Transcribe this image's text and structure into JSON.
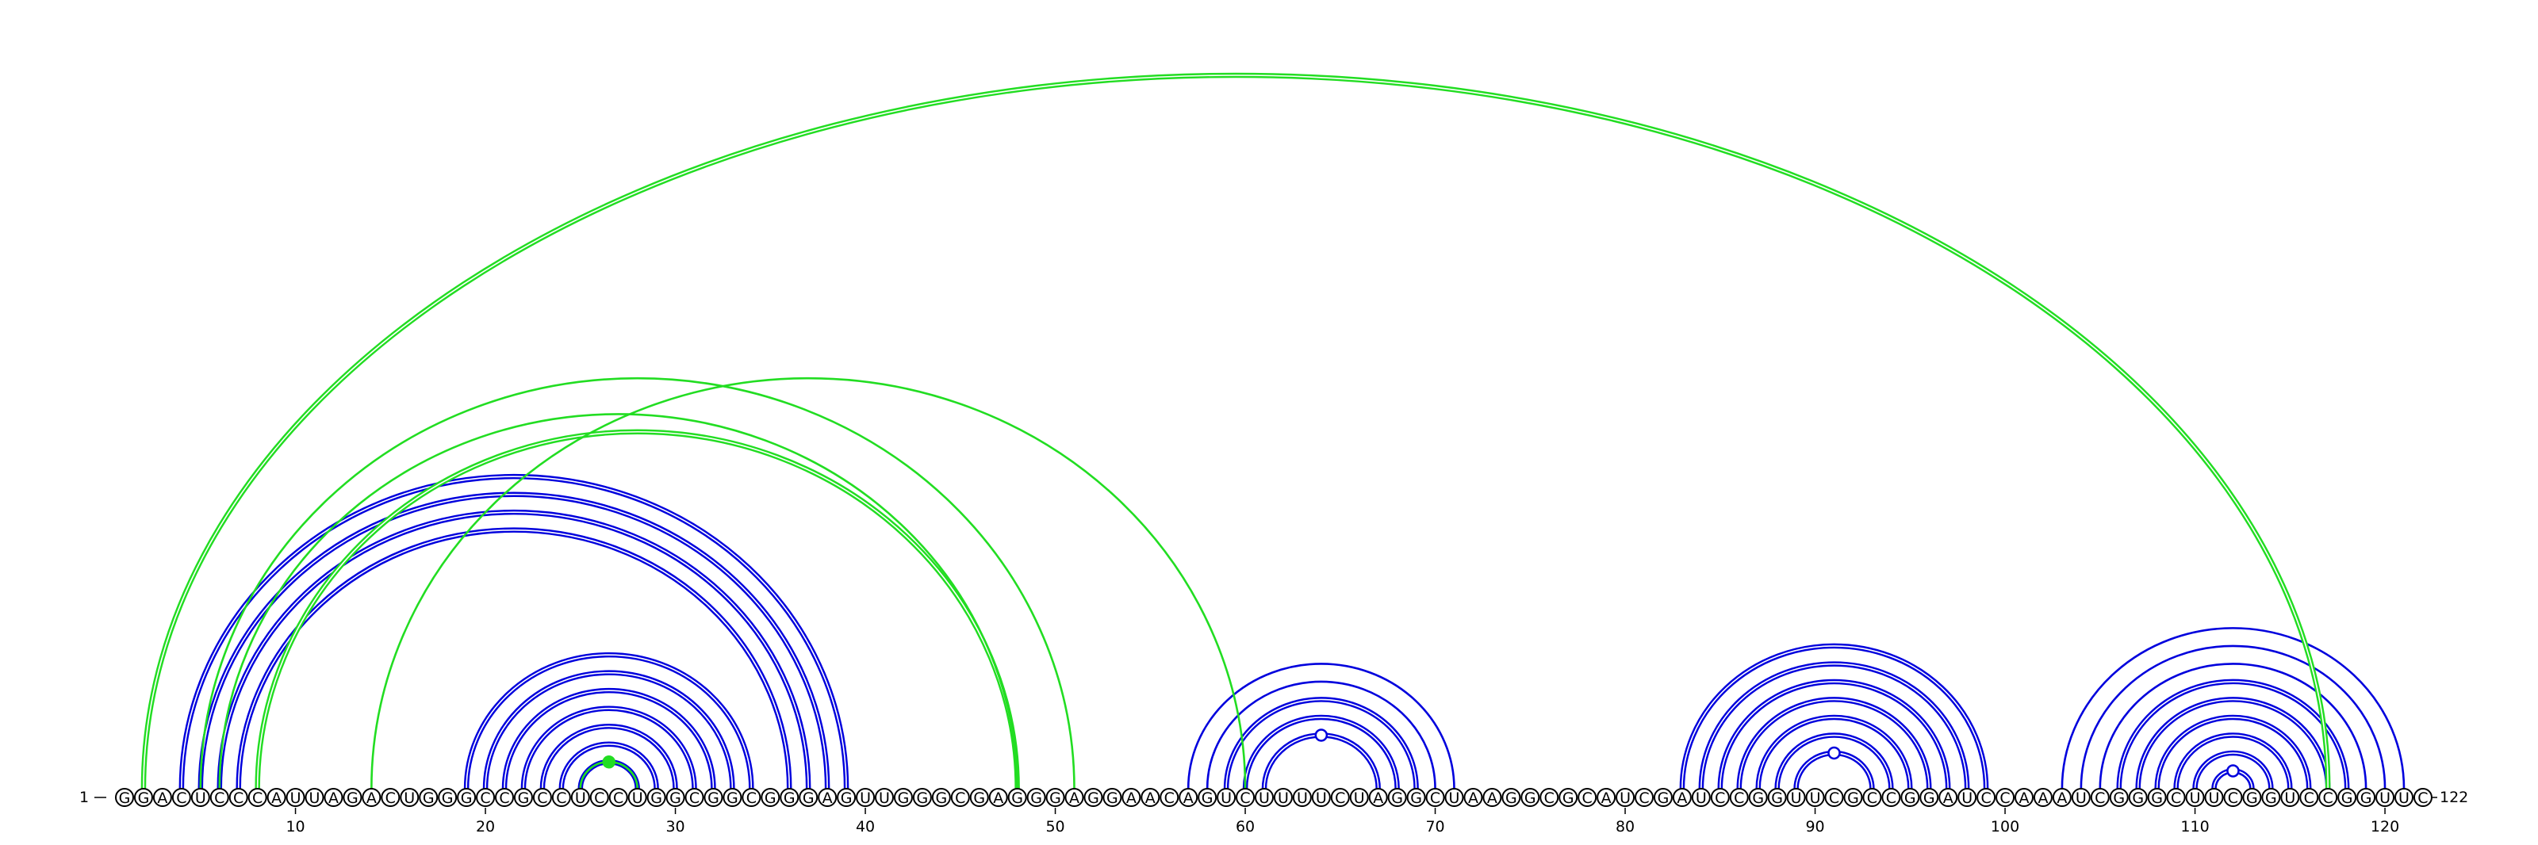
{
  "diagram": {
    "sequence": "GGACUCCCAUUAGACUGGGCCGCCUCCUGGCGGCGGGAGUUGGGCGAGGGAGGAACAGUCUUUUCUAGGCUAAGGCGCAUCGAUCCGGUUCGCCGGAUCCAAAUCGGGCUUCGGUCCGGUUC",
    "start_label": "1",
    "end_label": "122",
    "ticks": [
      "10",
      "20",
      "30",
      "40",
      "50",
      "60",
      "70",
      "80",
      "90",
      "100",
      "110",
      "120"
    ],
    "colors": {
      "blue": "#0000dd",
      "green": "#22dd22",
      "text": "#000000"
    },
    "arc_sets": [
      {
        "color": "blue",
        "double": true,
        "pairs": [
          [
            4,
            39
          ],
          [
            5,
            38
          ],
          [
            6,
            37
          ],
          [
            7,
            36
          ]
        ]
      },
      {
        "color": "blue",
        "double": true,
        "pairs": [
          [
            19,
            34
          ],
          [
            20,
            33
          ],
          [
            21,
            32
          ],
          [
            22,
            31
          ],
          [
            23,
            30
          ],
          [
            24,
            29
          ],
          [
            25,
            28
          ]
        ]
      },
      {
        "color": "green",
        "double": false,
        "pairs": [
          [
            25,
            28
          ]
        ],
        "marker": "filled"
      },
      {
        "color": "blue",
        "double": false,
        "pairs": [
          [
            57,
            71
          ],
          [
            58,
            70
          ]
        ]
      },
      {
        "color": "blue",
        "double": true,
        "pairs": [
          [
            59,
            69
          ],
          [
            60,
            68
          ],
          [
            61,
            67
          ]
        ],
        "marker": "open"
      },
      {
        "color": "blue",
        "double": true,
        "pairs": [
          [
            83,
            99
          ],
          [
            84,
            98
          ],
          [
            85,
            97
          ],
          [
            86,
            96
          ],
          [
            87,
            95
          ],
          [
            88,
            94
          ],
          [
            89,
            93
          ]
        ],
        "marker": "open"
      },
      {
        "color": "blue",
        "double": false,
        "pairs": [
          [
            103,
            121
          ],
          [
            104,
            120
          ],
          [
            105,
            119
          ]
        ]
      },
      {
        "color": "blue",
        "double": true,
        "pairs": [
          [
            106,
            118
          ],
          [
            107,
            117
          ],
          [
            108,
            116
          ],
          [
            109,
            115
          ],
          [
            110,
            114
          ],
          [
            111,
            113
          ]
        ],
        "marker": "open"
      },
      {
        "color": "green",
        "double": true,
        "pairs": [
          [
            2,
            117
          ]
        ]
      },
      {
        "color": "green",
        "double": true,
        "pairs": [
          [
            8,
            48
          ]
        ]
      },
      {
        "color": "green",
        "double": false,
        "pairs": [
          [
            6,
            48
          ],
          [
            5,
            51
          ],
          [
            14,
            60
          ]
        ]
      }
    ]
  }
}
